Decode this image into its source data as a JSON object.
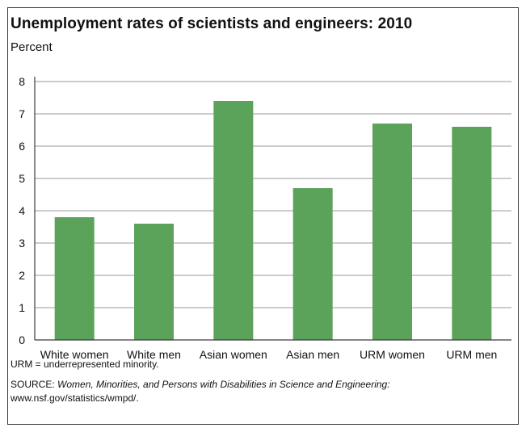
{
  "title": "Unemployment rates of scientists and engineers: 2010",
  "subtitle": "Percent",
  "note": "URM = underrepresented minority.",
  "source": {
    "label": "SOURCE:",
    "publication": "Women, Minorities, and Persons with Disabilities in Science and Engineering:",
    "url": "www.nsf.gov/statistics/wmpd/."
  },
  "colors": {
    "bar": "#5ba35a",
    "grid": "#9a9a9a",
    "axis": "#3a3a3a"
  },
  "chart_data": {
    "type": "bar",
    "title": "Unemployment rates of scientists and engineers: 2010",
    "ylabel": "Percent",
    "xlabel": "",
    "categories": [
      "White women",
      "White men",
      "Asian women",
      "Asian men",
      "URM women",
      "URM men"
    ],
    "values": [
      3.8,
      3.6,
      7.4,
      4.7,
      6.7,
      6.6
    ],
    "ylim": [
      0,
      8
    ],
    "yticks": [
      0,
      1,
      2,
      3,
      4,
      5,
      6,
      7,
      8
    ],
    "grid": true,
    "legend": "none"
  }
}
